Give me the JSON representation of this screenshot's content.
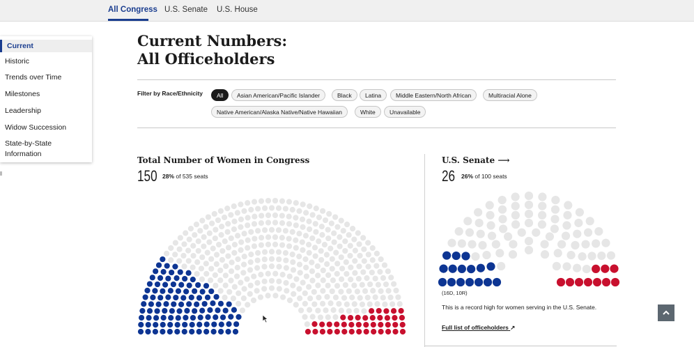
{
  "topnav": {
    "tabs": [
      {
        "label": "All Congress",
        "active": true
      },
      {
        "label": "U.S. Senate",
        "active": false
      },
      {
        "label": "U.S. House",
        "active": false
      }
    ]
  },
  "sidebar": {
    "items": [
      {
        "label": "Current",
        "active": true
      },
      {
        "label": "Historic"
      },
      {
        "label": "Trends over Time"
      },
      {
        "label": "Milestones"
      },
      {
        "label": "Leadership"
      },
      {
        "label": "Widow Succession"
      },
      {
        "label": "State-by-State"
      },
      {
        "label": "Information"
      }
    ]
  },
  "page": {
    "title_line1": "Current Numbers:",
    "title_line2": "All Officeholders"
  },
  "filter": {
    "label": "Filter by Race/Ethnicity",
    "options": [
      "All",
      "Asian American/Pacific Islander",
      "Black",
      "Latina",
      "Middle Eastern/North African",
      "Multiracial Alone",
      "Native American/Alaska Native/Native Hawaiian",
      "White",
      "Unavailable"
    ],
    "selected": "All"
  },
  "congress": {
    "heading": "Total Number of Women in Congress",
    "count": "150",
    "pct_bold": "28%",
    "pct_rest": " of 535 seats"
  },
  "senate": {
    "heading": "U.S. Senate",
    "arrow": "⟶",
    "count": "26",
    "pct_bold": "26%",
    "pct_rest": " of 100 seats",
    "breakdown": "(16D, 10R)",
    "note": "This is a record high for women serving in the U.S. Senate.",
    "link": "Full list of officeholders",
    "link_icon": "↗"
  },
  "back_to_top_icon": "chevron-up-icon",
  "chart_data": [
    {
      "type": "parliament",
      "title": "Total Number of Women in Congress",
      "total_seats": 535,
      "series": [
        {
          "name": "D",
          "values": [
            109
          ],
          "color": "#0d3593"
        },
        {
          "name": "R",
          "values": [
            41
          ],
          "color": "#c8102e"
        }
      ],
      "other_color": "#e6e6e6"
    },
    {
      "type": "parliament",
      "title": "U.S. Senate",
      "total_seats": 100,
      "series": [
        {
          "name": "D",
          "values": [
            16
          ],
          "color": "#0d3593"
        },
        {
          "name": "R",
          "values": [
            10
          ],
          "color": "#c8102e"
        }
      ],
      "other_color": "#e6e6e6"
    }
  ]
}
